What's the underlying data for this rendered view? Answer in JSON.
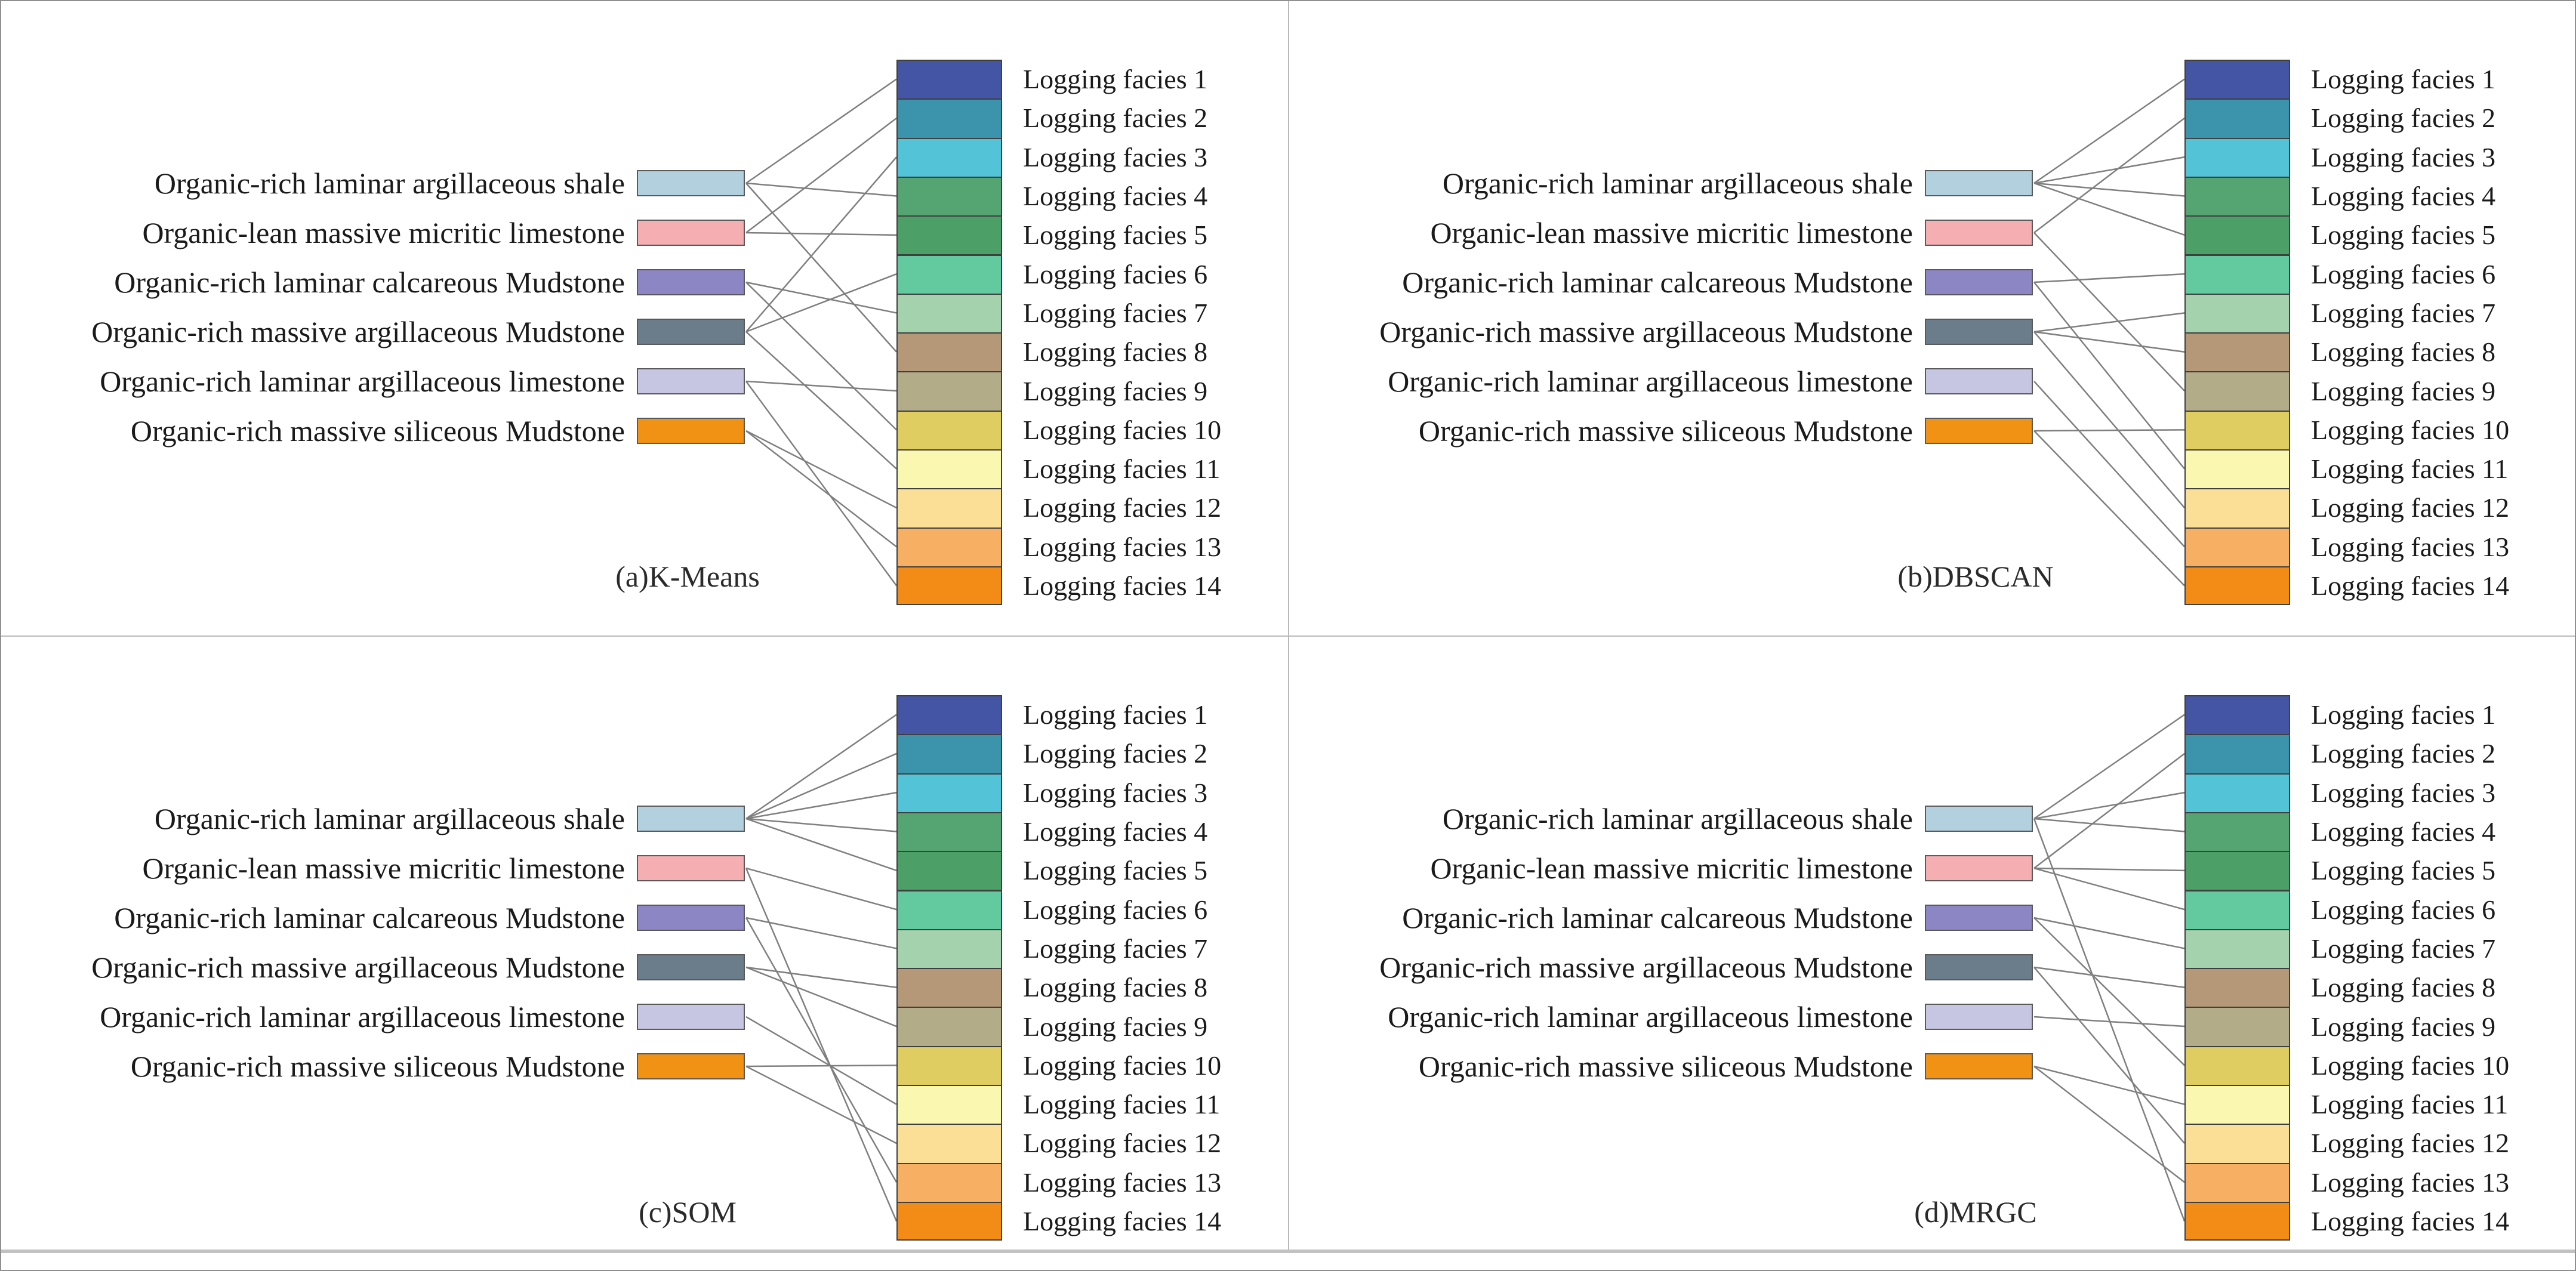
{
  "figure": {
    "lithofacies": [
      {
        "label": "Organic-rich laminar argillaceous shale",
        "color": "#b3d0de"
      },
      {
        "label": "Organic-lean massive micritic limestone",
        "color": "#f5aeb2"
      },
      {
        "label": "Organic-rich laminar calcareous Mudstone",
        "color": "#8d86c5"
      },
      {
        "label": "Organic-rich massive argillaceous Mudstone",
        "color": "#6b7d8a"
      },
      {
        "label": "Organic-rich laminar argillaceous limestone",
        "color": "#c6c5e2"
      },
      {
        "label": "Organic-rich massive siliceous Mudstone",
        "color": "#f29214"
      }
    ],
    "logging_facies": [
      {
        "label": "Logging facies 1",
        "color": "#4455a5"
      },
      {
        "label": "Logging facies 2",
        "color": "#3b93ac"
      },
      {
        "label": "Logging facies 3",
        "color": "#53c3d8"
      },
      {
        "label": "Logging facies 4",
        "color": "#55a572"
      },
      {
        "label": "Logging facies 5",
        "color": "#4d9f68"
      },
      {
        "label": "Logging facies 6",
        "color": "#63c99e"
      },
      {
        "label": "Logging facies 7",
        "color": "#a3d2ac"
      },
      {
        "label": "Logging facies 8",
        "color": "#b59877"
      },
      {
        "label": "Logging facies 9",
        "color": "#b3ac88"
      },
      {
        "label": "Logging facies 10",
        "color": "#e0cd62"
      },
      {
        "label": "Logging facies 11",
        "color": "#faf7b0"
      },
      {
        "label": "Logging facies 12",
        "color": "#fbdf96"
      },
      {
        "label": "Logging facies 13",
        "color": "#f6af63"
      },
      {
        "label": "Logging facies 14",
        "color": "#f28c17"
      }
    ],
    "panels": [
      {
        "id": "a",
        "caption": "(a)K-Means",
        "mapping": [
          [
            1,
            4,
            8
          ],
          [
            2,
            5
          ],
          [
            7,
            10
          ],
          [
            3,
            6,
            11
          ],
          [
            9,
            14
          ],
          [
            12,
            13
          ]
        ]
      },
      {
        "id": "b",
        "caption": "(b)DBSCAN",
        "mapping": [
          [
            1,
            3,
            4,
            5
          ],
          [
            2,
            9
          ],
          [
            6,
            11
          ],
          [
            7,
            8,
            12
          ],
          [
            13
          ],
          [
            10,
            14
          ]
        ]
      },
      {
        "id": "c",
        "caption": "(c)SOM",
        "mapping": [
          [
            1,
            2,
            3,
            4,
            5
          ],
          [
            6,
            14
          ],
          [
            7,
            13
          ],
          [
            8,
            9
          ],
          [
            11
          ],
          [
            10,
            12
          ]
        ]
      },
      {
        "id": "d",
        "caption": "(d)MRGC",
        "mapping": [
          [
            1,
            3,
            4,
            14
          ],
          [
            2,
            5,
            6
          ],
          [
            7,
            10
          ],
          [
            8,
            12
          ],
          [
            9
          ],
          [
            11,
            13
          ]
        ]
      }
    ],
    "style": {
      "line_color": "#7f7f7f",
      "block_border": "#3f3f3f",
      "swatch_border": "#5a5a5a",
      "text_color": "#1a1a1a"
    }
  }
}
